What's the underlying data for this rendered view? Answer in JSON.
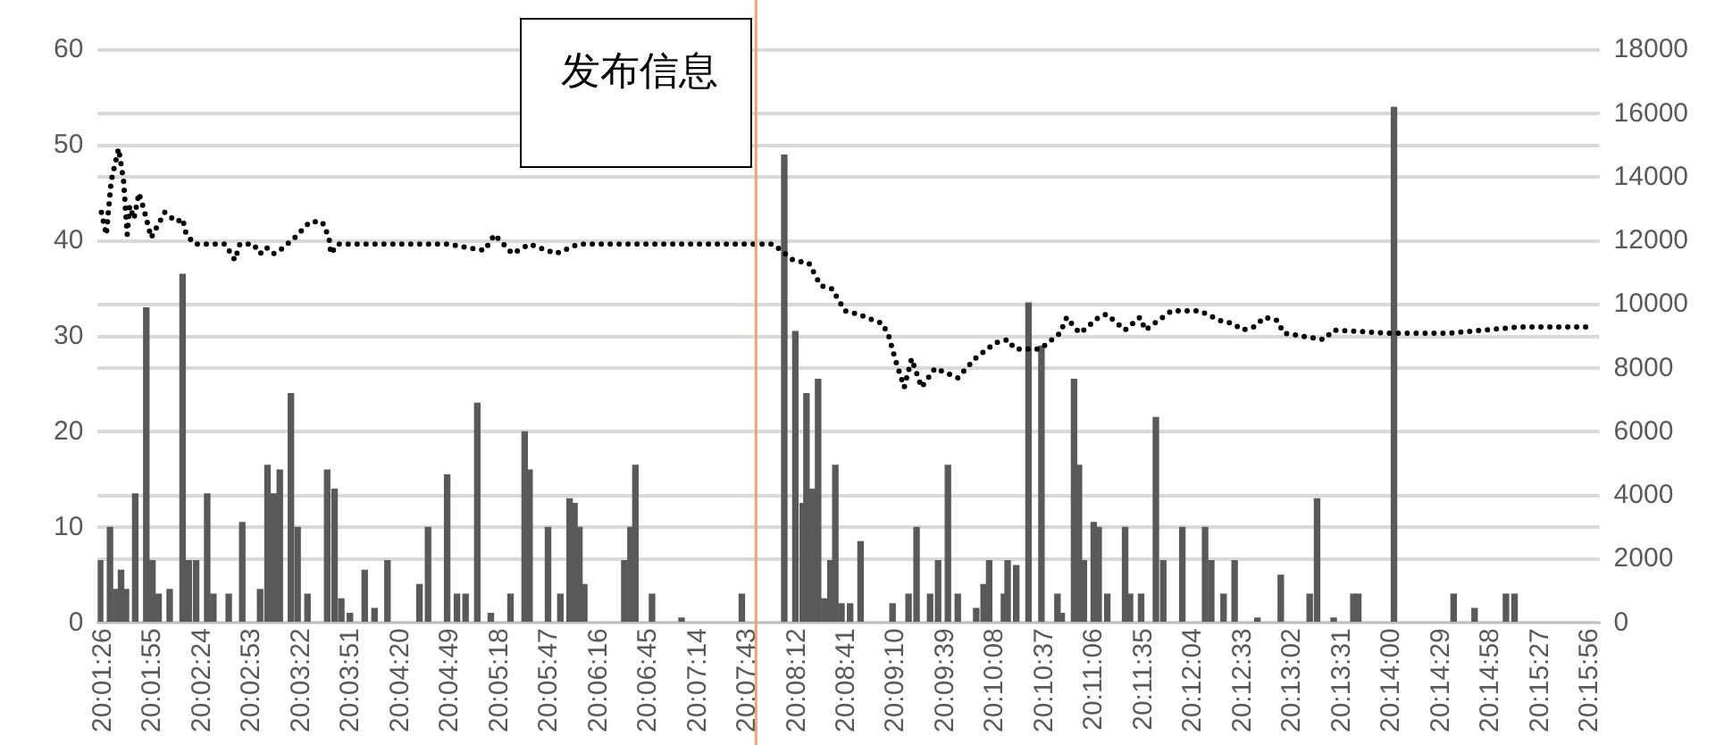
{
  "chart_data": {
    "type": "bar",
    "xlim": [
      20.023,
      20.2671
    ],
    "ylim": [
      0,
      60
    ],
    "yticks": [
      0,
      10,
      20,
      30,
      40,
      50,
      60
    ],
    "y2lim": [
      0,
      18000
    ],
    "y2ticks": [
      0,
      2000,
      4000,
      6000,
      8000,
      10000,
      12000,
      14000,
      16000,
      18000
    ],
    "xticks": [
      {
        "value": 20.023889,
        "label": "20:01:26"
      },
      {
        "value": 20.031944,
        "label": "20:01:55"
      },
      {
        "value": 20.04,
        "label": "20:02:24"
      },
      {
        "value": 20.048056,
        "label": "20:02:53"
      },
      {
        "value": 20.056111,
        "label": "20:03:22"
      },
      {
        "value": 20.064167,
        "label": "20:03:51"
      },
      {
        "value": 20.072222,
        "label": "20:04:20"
      },
      {
        "value": 20.080278,
        "label": "20:04:49"
      },
      {
        "value": 20.088333,
        "label": "20:05:18"
      },
      {
        "value": 20.096389,
        "label": "20:05:47"
      },
      {
        "value": 20.104444,
        "label": "20:06:16"
      },
      {
        "value": 20.1125,
        "label": "20:06:45"
      },
      {
        "value": 20.120556,
        "label": "20:07:14"
      },
      {
        "value": 20.128611,
        "label": "20:07:43"
      },
      {
        "value": 20.136667,
        "label": "20:08:12"
      },
      {
        "value": 20.144722,
        "label": "20:08:41"
      },
      {
        "value": 20.152778,
        "label": "20:09:10"
      },
      {
        "value": 20.160833,
        "label": "20:09:39"
      },
      {
        "value": 20.168889,
        "label": "20:10:08"
      },
      {
        "value": 20.176944,
        "label": "20:10:37"
      },
      {
        "value": 20.185,
        "label": "20:11:06"
      },
      {
        "value": 20.193056,
        "label": "20:11:35"
      },
      {
        "value": 20.201111,
        "label": "20:12:04"
      },
      {
        "value": 20.209167,
        "label": "20:12:33"
      },
      {
        "value": 20.217222,
        "label": "20:13:02"
      },
      {
        "value": 20.225278,
        "label": "20:13:31"
      },
      {
        "value": 20.233333,
        "label": "20:14:00"
      },
      {
        "value": 20.241389,
        "label": "20:14:29"
      },
      {
        "value": 20.249444,
        "label": "20:14:58"
      },
      {
        "value": 20.2575,
        "label": "20:15:27"
      },
      {
        "value": 20.265556,
        "label": "20:15:56"
      }
    ],
    "grid": "y",
    "legend": false,
    "ref_lines": [
      {
        "axis": "x",
        "value": 20.13,
        "color": "#f4a070"
      }
    ],
    "annotations": [
      "发布信息"
    ],
    "series": [
      {
        "color": "#595959",
        "x": [
          20.0234,
          20.025,
          20.026,
          20.0268,
          20.0276,
          20.0291,
          20.0309,
          20.0319,
          20.0329,
          20.0347,
          20.0368,
          20.0378,
          20.039,
          20.0408,
          20.0418,
          20.0443,
          20.0465,
          20.0494,
          20.0506,
          20.0516,
          20.0526,
          20.0544,
          20.0555,
          20.0571,
          20.0603,
          20.0615,
          20.0626,
          20.064,
          20.0664,
          20.068,
          20.0701,
          20.0753,
          20.0767,
          20.0798,
          20.0814,
          20.0828,
          20.0847,
          20.0869,
          20.0901,
          20.0924,
          20.0932,
          20.0962,
          20.0982,
          20.0997,
          20.1005,
          20.1013,
          20.1021,
          20.1086,
          20.1096,
          20.1104,
          20.1131,
          20.1179,
          20.1277,
          20.1346,
          20.1364,
          20.1376,
          20.1382,
          20.1392,
          20.1401,
          20.1411,
          20.1421,
          20.1429,
          20.1439,
          20.1453,
          20.147,
          20.1522,
          20.1548,
          20.1561,
          20.1583,
          20.1596,
          20.1612,
          20.1628,
          20.1658,
          20.167,
          20.1679,
          20.1703,
          20.1709,
          20.1723,
          20.1743,
          20.1764,
          20.179,
          20.1797,
          20.1817,
          20.1825,
          20.1833,
          20.1849,
          20.1857,
          20.1871,
          20.19,
          20.1908,
          20.1926,
          20.195,
          20.1962,
          20.1993,
          20.203,
          20.204,
          20.206,
          20.2078,
          20.2115,
          20.2153,
          20.22,
          20.2212,
          20.2239,
          20.2271,
          20.2279,
          20.2337,
          20.2434,
          20.2468,
          20.2519,
          20.2533
        ],
        "values": [
          6.5,
          10,
          3.5,
          5.5,
          3.5,
          13.5,
          33,
          6.5,
          3,
          3.5,
          36.5,
          6.5,
          6.5,
          13.5,
          3,
          3,
          10.5,
          3.5,
          16.5,
          13.5,
          16,
          24,
          10,
          3,
          16,
          14,
          2.5,
          1,
          5.5,
          1.5,
          6.5,
          4,
          10,
          15.5,
          3,
          3,
          23,
          1,
          3,
          20,
          16,
          10,
          3,
          13,
          12.5,
          10,
          4,
          6.5,
          10,
          16.5,
          3,
          0.5,
          3,
          49,
          30.5,
          12.5,
          24,
          14,
          25.5,
          2.5,
          6.5,
          16.5,
          2,
          2,
          8.5,
          2,
          3,
          10,
          3,
          6.5,
          16.5,
          3,
          1.5,
          4,
          6.5,
          3,
          6.5,
          6,
          33.5,
          29,
          3,
          1,
          25.5,
          16.5,
          6.5,
          10.5,
          10,
          3,
          10,
          3,
          3,
          21.5,
          6.5,
          10,
          10,
          6.5,
          3,
          6.5,
          0.5,
          5,
          3,
          13,
          0.5,
          3,
          3,
          54,
          3,
          1.5,
          3,
          3
        ]
      },
      {
        "type": "line",
        "axis": "y2",
        "color": "#000000",
        "line_style": "dotted",
        "marker": "none",
        "x": [
          20.0236,
          20.0244,
          20.0252,
          20.0264,
          20.0272,
          20.0278,
          20.0282,
          20.0289,
          20.0297,
          20.0305,
          20.0317,
          20.0325,
          20.0339,
          20.0358,
          20.0368,
          20.0374,
          20.0388,
          20.0418,
          20.0437,
          20.0453,
          20.0461,
          20.0483,
          20.0494,
          20.0504,
          20.0516,
          20.0526,
          20.055,
          20.0575,
          20.0595,
          20.0606,
          20.0609,
          20.062,
          20.0676,
          20.0737,
          20.0798,
          20.0859,
          20.0875,
          20.0904,
          20.0932,
          20.0975,
          20.1011,
          20.1113,
          20.1214,
          20.1328,
          20.136,
          20.1386,
          20.1405,
          20.1423,
          20.1445,
          20.1466,
          20.1506,
          20.1516,
          20.1526,
          20.1541,
          20.1553,
          20.1569,
          20.1591,
          20.1628,
          20.1656,
          20.1689,
          20.1709,
          20.1721,
          20.1762,
          20.1794,
          20.1805,
          20.1817,
          20.1827,
          20.1857,
          20.187,
          20.19,
          20.1924,
          20.1933,
          20.1975,
          20.2022,
          20.2054,
          20.2076,
          20.2091,
          20.2109,
          20.2127,
          20.2147,
          20.2158,
          20.2223,
          20.2239,
          20.233,
          20.2426,
          20.2543,
          20.2661
        ],
        "values": [
          12900,
          12200,
          13900,
          14900,
          13900,
          12200,
          13100,
          12700,
          13500,
          13000,
          12100,
          12400,
          12900,
          12600,
          12700,
          12200,
          11900,
          11900,
          11900,
          11400,
          11900,
          11900,
          11600,
          11800,
          11600,
          11700,
          12100,
          12600,
          12600,
          12100,
          11600,
          11900,
          11900,
          11900,
          11900,
          11700,
          12200,
          11600,
          11900,
          11600,
          11900,
          11900,
          11900,
          11900,
          11400,
          11300,
          10600,
          10500,
          9800,
          9700,
          9400,
          9000,
          8300,
          7400,
          8300,
          7400,
          8000,
          7700,
          8300,
          8800,
          8900,
          8600,
          8600,
          9100,
          9600,
          9300,
          9100,
          9600,
          9700,
          9200,
          9600,
          9200,
          9800,
          9800,
          9500,
          9400,
          9200,
          9300,
          9600,
          9500,
          9100,
          8900,
          9200,
          9100,
          9100,
          9300,
          9300
        ]
      }
    ]
  }
}
